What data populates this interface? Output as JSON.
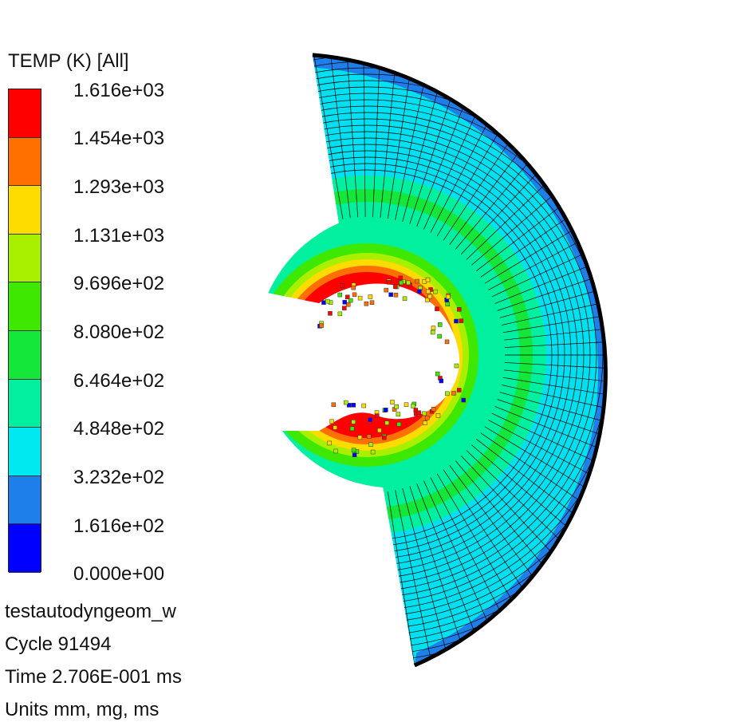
{
  "legend": {
    "title": "TEMP (K) [All]",
    "levels": [
      {
        "label": "1.616e+03",
        "color": "#ff0000"
      },
      {
        "label": "1.454e+03",
        "color": "#ff7000"
      },
      {
        "label": "1.293e+03",
        "color": "#ffdc00"
      },
      {
        "label": "1.131e+03",
        "color": "#a8f000"
      },
      {
        "label": "9.696e+02",
        "color": "#3ee800"
      },
      {
        "label": "8.080e+02",
        "color": "#14e63a"
      },
      {
        "label": "6.464e+02",
        "color": "#00f0a0"
      },
      {
        "label": "4.848e+02",
        "color": "#00e8f0"
      },
      {
        "label": "3.232e+02",
        "color": "#1e7eea"
      },
      {
        "label": "1.616e+02",
        "color": "#0000ff"
      },
      {
        "label": "0.000e+00",
        "color": ""
      }
    ]
  },
  "info": {
    "model_name": "testautodyngeom_w",
    "cycle": "Cycle 91494",
    "time": "Time 2.706E-001 ms",
    "units": "Units mm, mg, ms"
  },
  "plot": {
    "outer_color": "#00e0f0",
    "mid_color": "#00f0a0",
    "rim_color": "#1e7eea",
    "mesh_color": "#000000"
  }
}
